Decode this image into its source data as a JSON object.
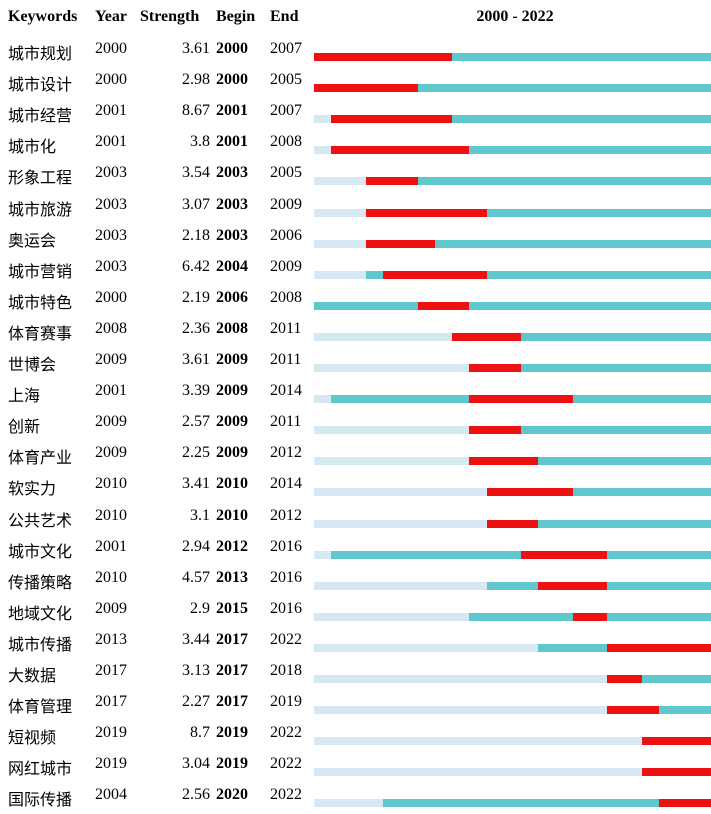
{
  "chart_data": {
    "type": "table",
    "range_label": "2000 - 2022",
    "timeline_start": 2000,
    "timeline_end": 2022,
    "columns": [
      "Keywords",
      "Year",
      "Strength",
      "Begin",
      "End"
    ],
    "colors": {
      "burst": "#ee1111",
      "active": "#5ec8cc",
      "inactive": "#d6e9f2"
    },
    "rows": [
      {
        "keyword": "城市规划",
        "year": "2000",
        "strength": "3.61",
        "begin": "2000",
        "end": "2007"
      },
      {
        "keyword": "城市设计",
        "year": "2000",
        "strength": "2.98",
        "begin": "2000",
        "end": "2005"
      },
      {
        "keyword": "城市经营",
        "year": "2001",
        "strength": "8.67",
        "begin": "2001",
        "end": "2007"
      },
      {
        "keyword": "城市化",
        "year": "2001",
        "strength": "3.8",
        "begin": "2001",
        "end": "2008"
      },
      {
        "keyword": "形象工程",
        "year": "2003",
        "strength": "3.54",
        "begin": "2003",
        "end": "2005"
      },
      {
        "keyword": "城市旅游",
        "year": "2003",
        "strength": "3.07",
        "begin": "2003",
        "end": "2009"
      },
      {
        "keyword": "奥运会",
        "year": "2003",
        "strength": "2.18",
        "begin": "2003",
        "end": "2006"
      },
      {
        "keyword": "城市营销",
        "year": "2003",
        "strength": "6.42",
        "begin": "2004",
        "end": "2009"
      },
      {
        "keyword": "城市特色",
        "year": "2000",
        "strength": "2.19",
        "begin": "2006",
        "end": "2008"
      },
      {
        "keyword": "体育赛事",
        "year": "2008",
        "strength": "2.36",
        "begin": "2008",
        "end": "2011"
      },
      {
        "keyword": "世博会",
        "year": "2009",
        "strength": "3.61",
        "begin": "2009",
        "end": "2011"
      },
      {
        "keyword": "上海",
        "year": "2001",
        "strength": "3.39",
        "begin": "2009",
        "end": "2014"
      },
      {
        "keyword": "创新",
        "year": "2009",
        "strength": "2.57",
        "begin": "2009",
        "end": "2011"
      },
      {
        "keyword": "体育产业",
        "year": "2009",
        "strength": "2.25",
        "begin": "2009",
        "end": "2012"
      },
      {
        "keyword": "软实力",
        "year": "2010",
        "strength": "3.41",
        "begin": "2010",
        "end": "2014"
      },
      {
        "keyword": "公共艺术",
        "year": "2010",
        "strength": "3.1",
        "begin": "2010",
        "end": "2012"
      },
      {
        "keyword": "城市文化",
        "year": "2001",
        "strength": "2.94",
        "begin": "2012",
        "end": "2016"
      },
      {
        "keyword": "传播策略",
        "year": "2010",
        "strength": "4.57",
        "begin": "2013",
        "end": "2016"
      },
      {
        "keyword": "地域文化",
        "year": "2009",
        "strength": "2.9",
        "begin": "2015",
        "end": "2016"
      },
      {
        "keyword": "城市传播",
        "year": "2013",
        "strength": "3.44",
        "begin": "2017",
        "end": "2022"
      },
      {
        "keyword": "大数据",
        "year": "2017",
        "strength": "3.13",
        "begin": "2017",
        "end": "2018"
      },
      {
        "keyword": "体育管理",
        "year": "2017",
        "strength": "2.27",
        "begin": "2017",
        "end": "2019"
      },
      {
        "keyword": "短视频",
        "year": "2019",
        "strength": "8.7",
        "begin": "2019",
        "end": "2022"
      },
      {
        "keyword": "网红城市",
        "year": "2019",
        "strength": "3.04",
        "begin": "2019",
        "end": "2022"
      },
      {
        "keyword": "国际传播",
        "year": "2004",
        "strength": "2.56",
        "begin": "2020",
        "end": "2022"
      }
    ]
  }
}
